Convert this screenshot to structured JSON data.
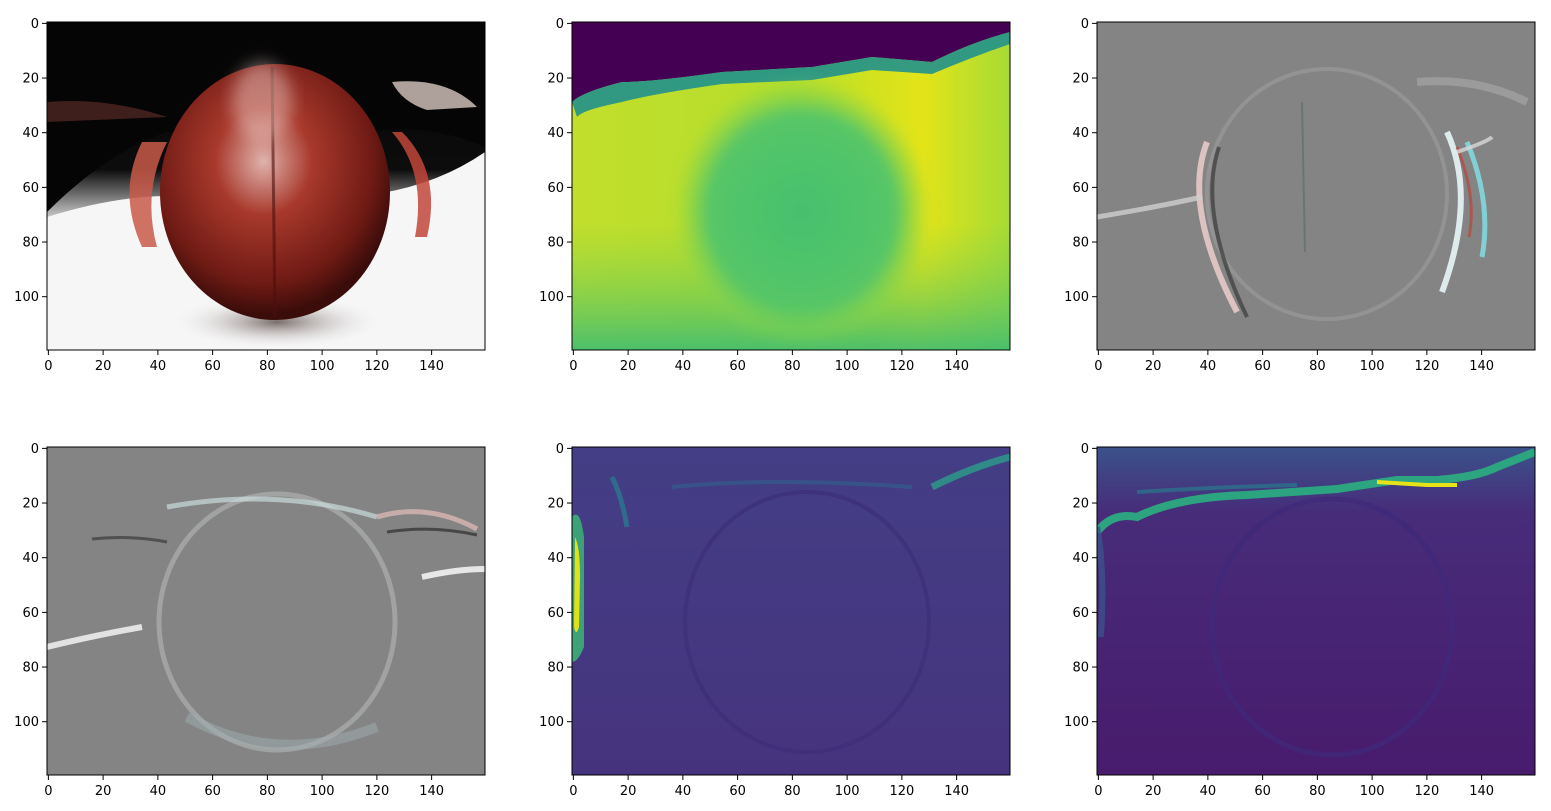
{
  "chart_data": [
    {
      "type": "heatmap",
      "content": "rgb-photo",
      "x_ticks": [
        0,
        20,
        40,
        60,
        80,
        100,
        120,
        140
      ],
      "y_ticks": [
        0,
        20,
        40,
        60,
        80,
        100
      ],
      "xlim": [
        -0.5,
        159.5
      ],
      "ylim": [
        119.5,
        -0.5
      ],
      "grid": false
    },
    {
      "type": "heatmap",
      "content": "depth",
      "colormap": "viridis",
      "x_ticks": [
        0,
        20,
        40,
        60,
        80,
        100,
        120,
        140
      ],
      "y_ticks": [
        0,
        20,
        40,
        60,
        80,
        100
      ],
      "xlim": [
        -0.5,
        159.5
      ],
      "ylim": [
        119.5,
        -0.5
      ],
      "grid": false
    },
    {
      "type": "heatmap",
      "content": "rgb-gradient-x",
      "x_ticks": [
        0,
        20,
        40,
        60,
        80,
        100,
        120,
        140
      ],
      "y_ticks": [
        0,
        20,
        40,
        60,
        80,
        100
      ],
      "xlim": [
        -0.5,
        159.5
      ],
      "ylim": [
        119.5,
        -0.5
      ],
      "grid": false
    },
    {
      "type": "heatmap",
      "content": "rgb-gradient-y",
      "x_ticks": [
        0,
        20,
        40,
        60,
        80,
        100,
        120,
        140
      ],
      "y_ticks": [
        0,
        20,
        40,
        60,
        80,
        100
      ],
      "xlim": [
        -0.5,
        159.5
      ],
      "ylim": [
        119.5,
        -0.5
      ],
      "grid": false
    },
    {
      "type": "heatmap",
      "content": "depth-gradient-x",
      "colormap": "viridis",
      "x_ticks": [
        0,
        20,
        40,
        60,
        80,
        100,
        120,
        140
      ],
      "y_ticks": [
        0,
        20,
        40,
        60,
        80,
        100
      ],
      "xlim": [
        -0.5,
        159.5
      ],
      "ylim": [
        119.5,
        -0.5
      ],
      "grid": false
    },
    {
      "type": "heatmap",
      "content": "depth-gradient-y",
      "colormap": "viridis",
      "x_ticks": [
        0,
        20,
        40,
        60,
        80,
        100,
        120,
        140
      ],
      "y_ticks": [
        0,
        20,
        40,
        60,
        80,
        100
      ],
      "xlim": [
        -0.5,
        159.5
      ],
      "ylim": [
        119.5,
        -0.5
      ],
      "grid": false
    }
  ]
}
